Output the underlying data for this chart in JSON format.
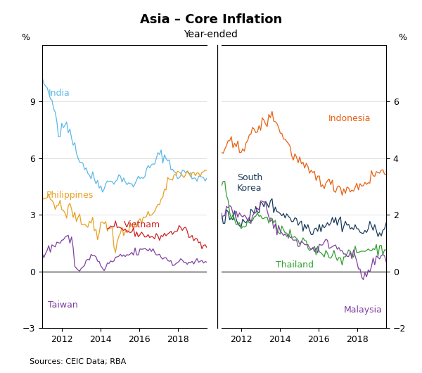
{
  "title": "Asia – Core Inflation",
  "subtitle": "Year-ended",
  "source": "Sources: CEIC Data; RBA",
  "left_ylabel": "%",
  "right_ylabel": "%",
  "left_ylim": [
    -3,
    12
  ],
  "right_ylim": [
    -2,
    8
  ],
  "left_yticks": [
    -3,
    0,
    3,
    6,
    9
  ],
  "right_yticks": [
    -2,
    0,
    2,
    4,
    6
  ],
  "colors": {
    "India": "#5BB8E8",
    "Philippines": "#E8A020",
    "Vietnam": "#CC2222",
    "Taiwan": "#8040A0",
    "Indonesia": "#E86010",
    "South Korea": "#1A3A5C",
    "Thailand": "#30A030",
    "Malaysia": "#8040A0"
  }
}
